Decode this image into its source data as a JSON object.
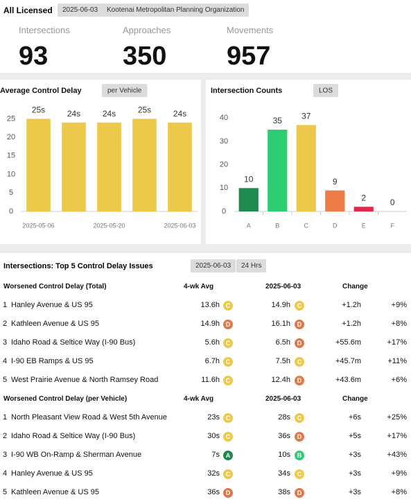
{
  "header": {
    "title": "All Licensed",
    "date": "2025-06-03",
    "org": "Kootenai Metropolitan Planning Organization"
  },
  "stats": [
    {
      "label": "Intersections",
      "value": 93
    },
    {
      "label": "Approaches",
      "value": 350
    },
    {
      "label": "Movements",
      "value": 957
    }
  ],
  "chart_data": [
    {
      "type": "bar",
      "title": "Average Control Delay",
      "badge": "per Vehicle",
      "categories": [
        "2025-05-06",
        null,
        "2025-05-20",
        null,
        "2025-06-03"
      ],
      "values": [
        25,
        24,
        24,
        25,
        24
      ],
      "value_labels": [
        "25s",
        "24s",
        "24s",
        "25s",
        "24s"
      ],
      "color": "#ecc94b",
      "ylim": [
        0,
        29
      ],
      "yticks": [
        0,
        5,
        10,
        15,
        20,
        25
      ],
      "grid": false
    },
    {
      "type": "bar",
      "title": "Intersection Counts",
      "badge": "LOS",
      "categories": [
        "A",
        "B",
        "C",
        "D",
        "E",
        "F"
      ],
      "values": [
        10,
        35,
        37,
        9,
        2,
        0
      ],
      "colors": [
        "#1e8a4e",
        "#2ecc71",
        "#ecc94b",
        "#ee7c47",
        "#e0294f",
        "#999999"
      ],
      "ylim": [
        0,
        46
      ],
      "yticks": [
        0,
        10,
        20,
        30,
        40
      ],
      "grid": false
    }
  ],
  "los_colors": {
    "A": "#1e8a4e",
    "B": "#2ecc71",
    "C": "#ecc94b",
    "D": "#e0784a",
    "E": "#e0294f",
    "F": "#999999"
  },
  "table": {
    "title": "Intersections: Top 5 Control Delay Issues",
    "date": "2025-06-03",
    "window": "24 Hrs",
    "sections": [
      {
        "title": "Worsened Control Delay (Total)",
        "columns": [
          "4-wk Avg",
          "2025-06-03",
          "Change"
        ],
        "rows": [
          {
            "rank": 1,
            "name": "Hanley Avenue & US 95",
            "avg": "13.6h",
            "avg_los": "C",
            "cur": "14.9h",
            "cur_los": "C",
            "change": "+1.2h",
            "pct": "+9%"
          },
          {
            "rank": 2,
            "name": "Kathleen Avenue & US 95",
            "avg": "14.9h",
            "avg_los": "D",
            "cur": "16.1h",
            "cur_los": "D",
            "change": "+1.2h",
            "pct": "+8%"
          },
          {
            "rank": 3,
            "name": "Idaho Road & Seltice Way (I-90 Bus)",
            "avg": "5.6h",
            "avg_los": "C",
            "cur": "6.5h",
            "cur_los": "D",
            "change": "+55.6m",
            "pct": "+17%"
          },
          {
            "rank": 4,
            "name": "I-90 EB Ramps & US 95",
            "avg": "6.7h",
            "avg_los": "C",
            "cur": "7.5h",
            "cur_los": "C",
            "change": "+45.7m",
            "pct": "+11%"
          },
          {
            "rank": 5,
            "name": "West Prairie Avenue & North Ramsey Road",
            "avg": "11.6h",
            "avg_los": "C",
            "cur": "12.4h",
            "cur_los": "D",
            "change": "+43.6m",
            "pct": "+6%"
          }
        ]
      },
      {
        "title": "Worsened Control Delay (per Vehicle)",
        "columns": [
          "4-wk Avg",
          "2025-06-03",
          "Change"
        ],
        "rows": [
          {
            "rank": 1,
            "name": "North Pleasant View Road & West 5th Avenue",
            "avg": "23s",
            "avg_los": "C",
            "cur": "28s",
            "cur_los": "C",
            "change": "+6s",
            "pct": "+25%"
          },
          {
            "rank": 2,
            "name": "Idaho Road & Seltice Way (I-90 Bus)",
            "avg": "30s",
            "avg_los": "C",
            "cur": "36s",
            "cur_los": "D",
            "change": "+5s",
            "pct": "+17%"
          },
          {
            "rank": 3,
            "name": "I-90 WB On-Ramp & Sherman Avenue",
            "avg": "7s",
            "avg_los": "A",
            "cur": "10s",
            "cur_los": "B",
            "change": "+3s",
            "pct": "+43%"
          },
          {
            "rank": 4,
            "name": "Hanley Avenue & US 95",
            "avg": "32s",
            "avg_los": "C",
            "cur": "34s",
            "cur_los": "C",
            "change": "+3s",
            "pct": "+9%"
          },
          {
            "rank": 5,
            "name": "Kathleen Avenue & US 95",
            "avg": "36s",
            "avg_los": "D",
            "cur": "38s",
            "cur_los": "D",
            "change": "+3s",
            "pct": "+8%"
          }
        ]
      }
    ]
  }
}
